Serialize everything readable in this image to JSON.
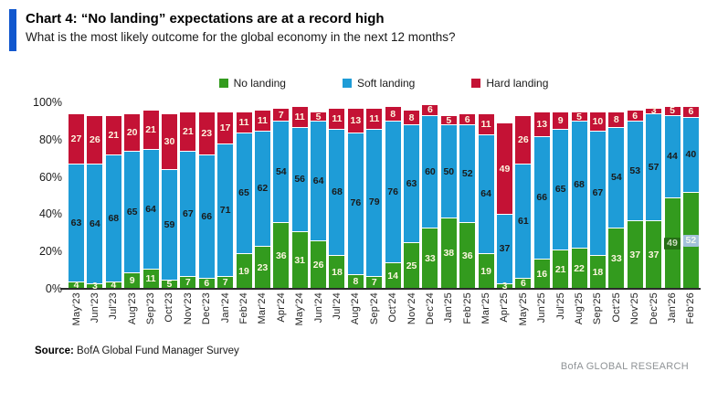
{
  "header": {
    "title": "Chart 4: “No landing” expectations are at a record high",
    "subtitle": "What is the most likely outcome for the global economy in the next 12 months?"
  },
  "footer": {
    "source_label": "Source:",
    "source_text": " BofA Global Fund Manager Survey",
    "brand": "BofA GLOBAL RESEARCH"
  },
  "colors": {
    "accent_bar": "#1157ce",
    "axis": "#2b2b2b",
    "no_landing": "#339b1e",
    "soft_landing": "#1e9cd7",
    "hard_landing": "#c41235"
  },
  "chart_data": {
    "type": "bar",
    "variant": "stacked-column",
    "title": "Chart 4: “No landing” expectations are at a record high",
    "subtitle": "What is the most likely outcome for the global economy in the next 12 months?",
    "xlabel": "",
    "ylabel": "",
    "ylim": [
      0,
      100
    ],
    "y_ticks": [
      "100%",
      "80%",
      "60%",
      "40%",
      "20%",
      "0%"
    ],
    "grid": false,
    "legend_position": "top-center",
    "categories": [
      "May'23",
      "Jun'23",
      "Jul'23",
      "Aug'23",
      "Sep'23",
      "Oct'23",
      "Nov'23",
      "Dec'23",
      "Jan'24",
      "Feb'24",
      "Mar'24",
      "Apr'24",
      "May'24",
      "Jun'24",
      "Jul'24",
      "Aug'24",
      "Sep'24",
      "Oct'24",
      "Nov'24",
      "Dec'24",
      "Jan'25",
      "Feb'25",
      "Mar'25",
      "Apr'25",
      "May'25",
      "Jun'25",
      "Jul'25",
      "Aug'25",
      "Sep'25",
      "Oct'25",
      "Nov'25",
      "Dec'25",
      "Jan'26",
      "Feb'26"
    ],
    "series": [
      {
        "name": "No landing",
        "color": "#339b1e",
        "label_color": "#fdf6e0",
        "values": [
          4,
          3,
          4,
          9,
          11,
          5,
          7,
          6,
          7,
          19,
          23,
          36,
          31,
          26,
          18,
          8,
          7,
          14,
          25,
          33,
          38,
          36,
          19,
          3,
          6,
          16,
          21,
          22,
          18,
          33,
          37,
          37,
          49,
          52
        ]
      },
      {
        "name": "Soft landing",
        "color": "#1e9cd7",
        "label_color": "#1a1a1a",
        "values": [
          63,
          64,
          68,
          65,
          64,
          59,
          67,
          66,
          71,
          65,
          62,
          54,
          56,
          64,
          68,
          76,
          79,
          76,
          63,
          60,
          50,
          52,
          64,
          37,
          61,
          66,
          65,
          68,
          67,
          54,
          53,
          57,
          44,
          40
        ]
      },
      {
        "name": "Hard landing",
        "color": "#c41235",
        "label_color": "#fdf6e0",
        "values": [
          27,
          26,
          21,
          20,
          21,
          30,
          21,
          23,
          17,
          11,
          11,
          7,
          11,
          5,
          11,
          13,
          11,
          8,
          8,
          6,
          5,
          6,
          11,
          49,
          26,
          13,
          9,
          5,
          10,
          8,
          6,
          3,
          5,
          6
        ]
      }
    ],
    "highlighted_labels": [
      {
        "category": "Jan'26",
        "series": "No landing",
        "bg": "#256e15",
        "fg": "#cbdcc0"
      },
      {
        "category": "Feb'26",
        "series": "No landing",
        "bg": "#a3c1da",
        "fg": "#f2f8ee"
      }
    ]
  }
}
